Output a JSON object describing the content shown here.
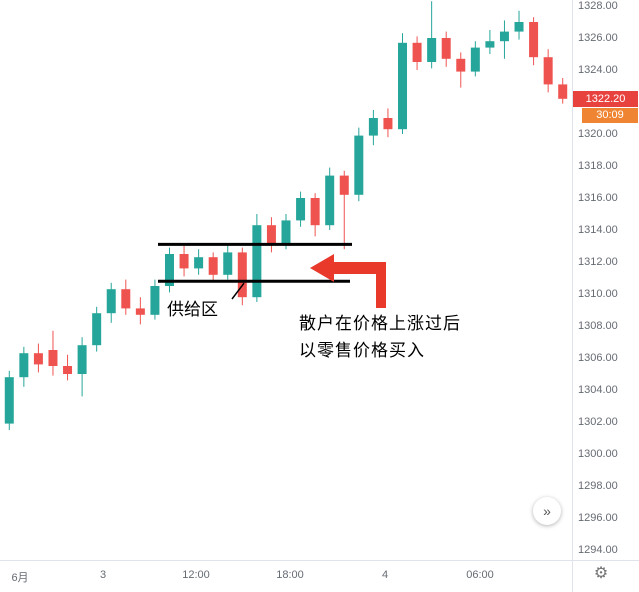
{
  "chart": {
    "colors": {
      "up": "#26a69a",
      "down": "#ef5350",
      "badge_price": "#e8423e",
      "badge_countdown": "#ef8532",
      "annotation_line": "#000000",
      "arrow": "#e8392b",
      "axis_text": "#666b73",
      "separator": "#e0e3eb"
    },
    "price_axis": {
      "labels": [
        "1328.00",
        "1326.00",
        "1324.00",
        "1320.00",
        "1318.00",
        "1316.00",
        "1314.00",
        "1312.00",
        "1310.00",
        "1308.00",
        "1306.00",
        "1304.00",
        "1302.00",
        "1300.00",
        "1298.00",
        "1296.00",
        "1294.00"
      ]
    },
    "time_axis": {
      "labels": [
        "6月",
        "3",
        "12:00",
        "18:00",
        "4",
        "06:00"
      ]
    },
    "last_price": {
      "value": "1322.20",
      "countdown": "30:09"
    }
  },
  "chart_data": {
    "type": "candlestick",
    "title": "",
    "ylim": [
      1294,
      1328
    ],
    "price_step": 2,
    "x_labels": [
      "6月",
      "3",
      "12:00",
      "18:00",
      "4",
      "06:00"
    ],
    "candles": [
      {
        "o": 1301.9,
        "h": 1305.2,
        "l": 1301.5,
        "c": 1304.8
      },
      {
        "o": 1304.8,
        "h": 1306.7,
        "l": 1304.2,
        "c": 1306.3
      },
      {
        "o": 1306.3,
        "h": 1306.9,
        "l": 1305.1,
        "c": 1305.6
      },
      {
        "o": 1306.5,
        "h": 1307.7,
        "l": 1304.9,
        "c": 1305.5
      },
      {
        "o": 1305.5,
        "h": 1306.2,
        "l": 1304.6,
        "c": 1305.0
      },
      {
        "o": 1305.0,
        "h": 1307.3,
        "l": 1303.6,
        "c": 1306.8
      },
      {
        "o": 1306.8,
        "h": 1309.2,
        "l": 1306.4,
        "c": 1308.8
      },
      {
        "o": 1308.8,
        "h": 1310.7,
        "l": 1308.2,
        "c": 1310.3
      },
      {
        "o": 1310.3,
        "h": 1310.9,
        "l": 1308.7,
        "c": 1309.1
      },
      {
        "o": 1309.1,
        "h": 1309.8,
        "l": 1308.1,
        "c": 1308.7
      },
      {
        "o": 1308.7,
        "h": 1310.9,
        "l": 1308.4,
        "c": 1310.5
      },
      {
        "o": 1310.5,
        "h": 1312.9,
        "l": 1310.1,
        "c": 1312.5
      },
      {
        "o": 1312.5,
        "h": 1313.0,
        "l": 1311.1,
        "c": 1311.6
      },
      {
        "o": 1311.6,
        "h": 1312.8,
        "l": 1311.2,
        "c": 1312.3
      },
      {
        "o": 1312.3,
        "h": 1312.6,
        "l": 1310.8,
        "c": 1311.2
      },
      {
        "o": 1311.2,
        "h": 1313.1,
        "l": 1310.9,
        "c": 1312.6
      },
      {
        "o": 1312.6,
        "h": 1312.9,
        "l": 1309.3,
        "c": 1309.8
      },
      {
        "o": 1309.8,
        "h": 1315.0,
        "l": 1309.5,
        "c": 1314.3
      },
      {
        "o": 1314.3,
        "h": 1314.8,
        "l": 1312.6,
        "c": 1313.1
      },
      {
        "o": 1313.1,
        "h": 1315.0,
        "l": 1312.8,
        "c": 1314.6
      },
      {
        "o": 1314.6,
        "h": 1316.4,
        "l": 1314.2,
        "c": 1316.0
      },
      {
        "o": 1316.0,
        "h": 1316.3,
        "l": 1313.6,
        "c": 1314.3
      },
      {
        "o": 1314.3,
        "h": 1317.9,
        "l": 1314.0,
        "c": 1317.4
      },
      {
        "o": 1317.4,
        "h": 1317.7,
        "l": 1312.8,
        "c": 1316.2
      },
      {
        "o": 1316.2,
        "h": 1320.4,
        "l": 1315.8,
        "c": 1319.9
      },
      {
        "o": 1319.9,
        "h": 1321.5,
        "l": 1319.3,
        "c": 1321.0
      },
      {
        "o": 1321.0,
        "h": 1321.6,
        "l": 1319.8,
        "c": 1320.3
      },
      {
        "o": 1320.3,
        "h": 1326.3,
        "l": 1320.0,
        "c": 1325.7
      },
      {
        "o": 1325.7,
        "h": 1326.1,
        "l": 1324.0,
        "c": 1324.5
      },
      {
        "o": 1324.5,
        "h": 1328.3,
        "l": 1324.1,
        "c": 1326.0
      },
      {
        "o": 1326.0,
        "h": 1326.4,
        "l": 1324.2,
        "c": 1324.7
      },
      {
        "o": 1324.7,
        "h": 1325.1,
        "l": 1322.9,
        "c": 1323.9
      },
      {
        "o": 1323.9,
        "h": 1325.8,
        "l": 1323.6,
        "c": 1325.4
      },
      {
        "o": 1325.4,
        "h": 1326.5,
        "l": 1325.0,
        "c": 1325.8
      },
      {
        "o": 1325.8,
        "h": 1327.1,
        "l": 1324.7,
        "c": 1326.4
      },
      {
        "o": 1326.4,
        "h": 1327.7,
        "l": 1325.9,
        "c": 1327.0
      },
      {
        "o": 1327.0,
        "h": 1327.3,
        "l": 1324.3,
        "c": 1324.8
      },
      {
        "o": 1324.8,
        "h": 1325.3,
        "l": 1322.6,
        "c": 1323.1
      },
      {
        "o": 1323.1,
        "h": 1323.5,
        "l": 1321.9,
        "c": 1322.2
      }
    ],
    "annotations": {
      "supply_zone": {
        "label": "供给区",
        "top_price": 1313.1,
        "bottom_price": 1310.8
      },
      "note": {
        "line1": "散户在价格上涨过后",
        "line2": "以零售价格买入"
      },
      "arrow": {
        "direction": "left",
        "points_to_price": 1312.2
      }
    }
  },
  "controls": {
    "more_icon": "»",
    "settings_icon": "⚙"
  }
}
